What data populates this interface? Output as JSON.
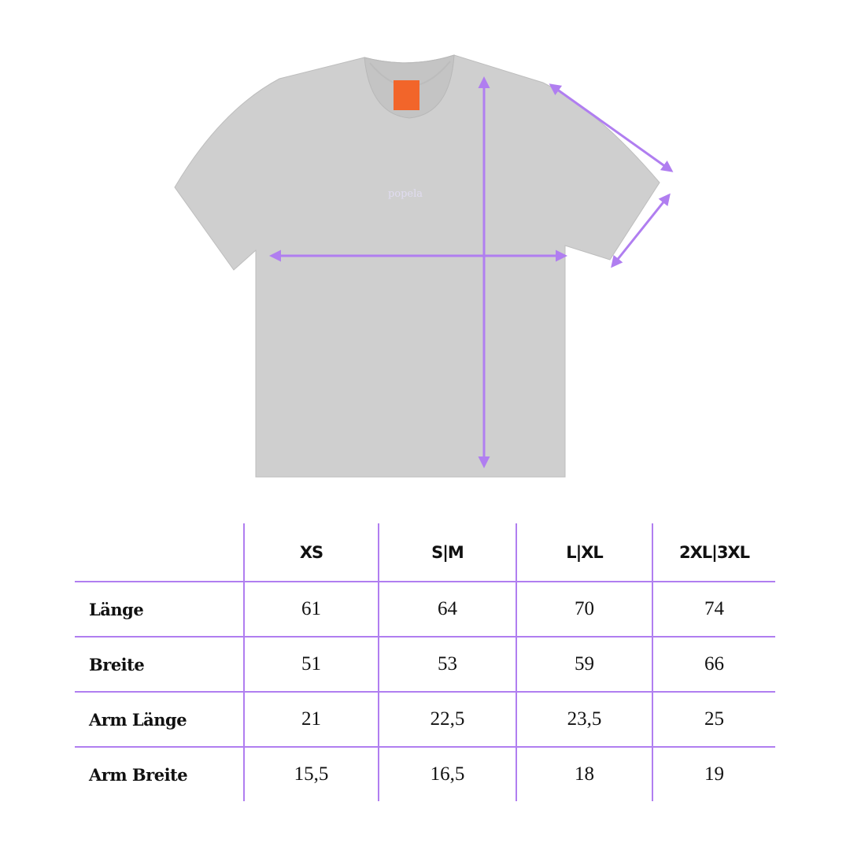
{
  "colors": {
    "accent": "#b07ef0",
    "shirt": "#cfcfcf",
    "tag": "#f2652a"
  },
  "shirt": {
    "logo": "popela"
  },
  "table": {
    "columns": [
      "",
      "XS",
      "S|M",
      "L|XL",
      "2XL|3XL"
    ],
    "rows": [
      {
        "label": "Länge",
        "values": [
          "61",
          "64",
          "70",
          "74"
        ]
      },
      {
        "label": "Breite",
        "values": [
          "51",
          "53",
          "59",
          "66"
        ]
      },
      {
        "label": "Arm Länge",
        "values": [
          "21",
          "22,5",
          "23,5",
          "25"
        ]
      },
      {
        "label": "Arm Breite",
        "values": [
          "15,5",
          "16,5",
          "18",
          "19"
        ]
      }
    ]
  }
}
